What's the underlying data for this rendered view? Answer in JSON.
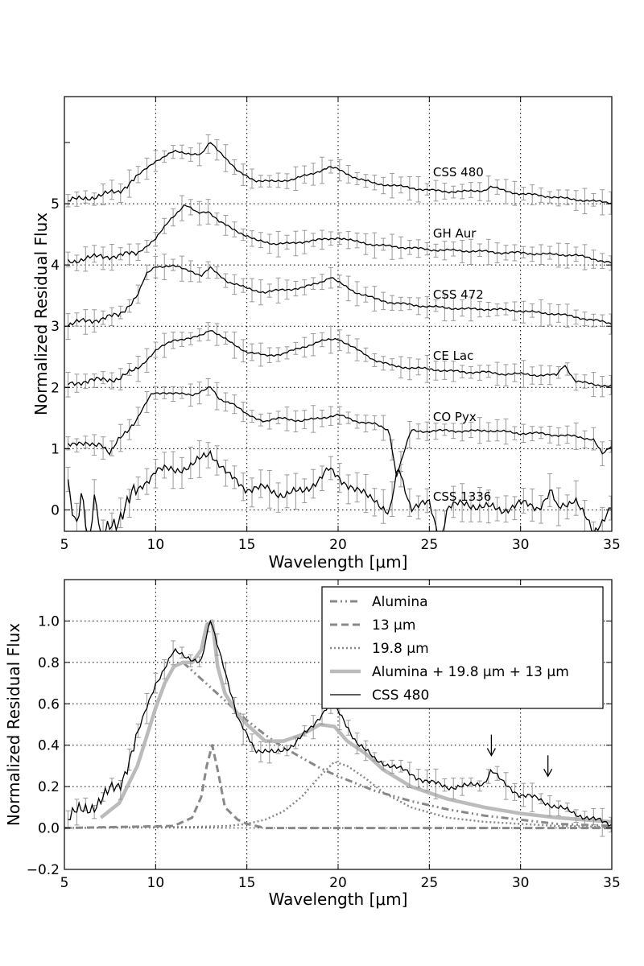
{
  "chart_data": [
    {
      "type": "line",
      "panel": "top",
      "xlabel": "Wavelength [μm]",
      "ylabel": "Normalized Residual Flux",
      "xlim": [
        5,
        35
      ],
      "ylim": [
        -0.35,
        6.75
      ],
      "xticks": [
        "5",
        "10",
        "15",
        "20",
        "25",
        "30",
        "35"
      ],
      "yticks": [
        "0",
        "1",
        "2",
        "3",
        "4",
        "5"
      ],
      "grid": true,
      "series": [
        {
          "name": "CSS 480",
          "label": "CSS 480",
          "offset": 5,
          "label_x": 25.2,
          "label_y": 5.45,
          "x": [
            5.2,
            6,
            7,
            8,
            9,
            10,
            11,
            12,
            12.5,
            13,
            13.7,
            14.5,
            15.5,
            16.5,
            17.5,
            18.5,
            19.5,
            20,
            21,
            22,
            23,
            24,
            25,
            26,
            27,
            28,
            28.4,
            29,
            30,
            31,
            32,
            33,
            34,
            35
          ],
          "y": [
            0.05,
            0.08,
            0.14,
            0.2,
            0.45,
            0.7,
            0.85,
            0.82,
            0.8,
            1.0,
            0.8,
            0.52,
            0.38,
            0.36,
            0.4,
            0.48,
            0.6,
            0.56,
            0.42,
            0.33,
            0.3,
            0.26,
            0.22,
            0.2,
            0.2,
            0.22,
            0.28,
            0.22,
            0.16,
            0.14,
            0.1,
            0.07,
            0.04,
            0.02
          ]
        },
        {
          "name": "GH Aur",
          "label": "GH Aur",
          "offset": 4,
          "label_x": 25.2,
          "label_y": 4.45,
          "x": [
            5.2,
            6,
            7,
            8,
            9,
            10,
            10.8,
            11.6,
            12.3,
            12.9,
            13.5,
            14.5,
            15.5,
            16.5,
            17.5,
            18.5,
            19.5,
            20,
            21,
            22,
            23,
            24,
            25,
            26,
            27,
            28,
            29,
            30,
            31,
            32,
            33,
            34,
            35
          ],
          "y": [
            0.05,
            0.1,
            0.14,
            0.15,
            0.2,
            0.42,
            0.75,
            0.98,
            0.85,
            0.88,
            0.7,
            0.55,
            0.4,
            0.35,
            0.35,
            0.4,
            0.42,
            0.45,
            0.38,
            0.33,
            0.3,
            0.28,
            0.25,
            0.24,
            0.23,
            0.22,
            0.2,
            0.2,
            0.18,
            0.17,
            0.16,
            0.1,
            0.03
          ]
        },
        {
          "name": "CSS 472",
          "label": "CSS 472",
          "offset": 3,
          "label_x": 25.2,
          "label_y": 3.45,
          "x": [
            5.2,
            6,
            7,
            8,
            9,
            9.5,
            10,
            11,
            12,
            12.5,
            13,
            14,
            15,
            16,
            17,
            18,
            19,
            19.6,
            20,
            21,
            22,
            23,
            24,
            25,
            26,
            27,
            28,
            29,
            30,
            31,
            32,
            33,
            34,
            35
          ],
          "y": [
            0.02,
            0.08,
            0.12,
            0.18,
            0.5,
            0.85,
            0.98,
            0.98,
            0.9,
            0.82,
            0.95,
            0.72,
            0.62,
            0.55,
            0.6,
            0.62,
            0.72,
            0.8,
            0.72,
            0.55,
            0.45,
            0.38,
            0.35,
            0.32,
            0.3,
            0.28,
            0.28,
            0.27,
            0.25,
            0.22,
            0.2,
            0.15,
            0.1,
            0.04
          ]
        },
        {
          "name": "CE Lac",
          "label": "CE Lac",
          "offset": 2,
          "label_x": 25.2,
          "label_y": 2.45,
          "x": [
            5.2,
            6,
            7,
            8,
            9,
            10,
            11,
            12,
            12.5,
            13,
            14,
            15,
            16,
            17,
            18,
            19,
            20,
            21,
            22,
            23,
            24,
            25,
            26,
            27,
            28,
            29,
            30,
            31,
            32,
            32.4,
            33,
            34,
            35
          ],
          "y": [
            0.05,
            0.1,
            0.12,
            0.15,
            0.3,
            0.6,
            0.78,
            0.8,
            0.85,
            0.95,
            0.75,
            0.58,
            0.52,
            0.55,
            0.65,
            0.75,
            0.8,
            0.62,
            0.45,
            0.35,
            0.32,
            0.3,
            0.27,
            0.25,
            0.25,
            0.22,
            0.22,
            0.2,
            0.2,
            0.38,
            0.1,
            0.05,
            0.02
          ]
        },
        {
          "name": "CO Pyx",
          "label": "CO Pyx",
          "offset": 1,
          "label_x": 25.2,
          "label_y": 1.45,
          "x": [
            5.2,
            6,
            7,
            7.5,
            8,
            9,
            9.8,
            10.5,
            11,
            12,
            13,
            13.5,
            14.2,
            15,
            16,
            17,
            18,
            19,
            20,
            21,
            22,
            22.8,
            23.2,
            24,
            25,
            26,
            27,
            28,
            29,
            30,
            31,
            32,
            33,
            34,
            34.5,
            35
          ],
          "y": [
            0.1,
            0.05,
            0.1,
            -0.1,
            0.15,
            0.5,
            0.9,
            0.92,
            0.9,
            0.88,
            1.0,
            0.8,
            0.75,
            0.55,
            0.45,
            0.5,
            0.45,
            0.5,
            0.55,
            0.45,
            0.4,
            0.3,
            -0.45,
            0.3,
            0.28,
            0.3,
            0.28,
            0.3,
            0.28,
            0.25,
            0.25,
            0.22,
            0.2,
            0.15,
            -0.1,
            0.05
          ]
        },
        {
          "name": "CSS 1336",
          "label": "CSS 1336",
          "offset": 0,
          "label_x": 25.2,
          "label_y": 0.15,
          "x": [
            5.2,
            5.6,
            6,
            6.3,
            6.7,
            7,
            7.5,
            8,
            9,
            10,
            11,
            12,
            13,
            14,
            15,
            16,
            17,
            18,
            19,
            19.5,
            20,
            21,
            22,
            22.8,
            23.3,
            24,
            25,
            25.6,
            26,
            27,
            28,
            29,
            30,
            31,
            31.7,
            32,
            33,
            34,
            35
          ],
          "y": [
            0.3,
            -0.3,
            0.4,
            -0.5,
            0.2,
            -0.6,
            -0.2,
            -0.1,
            0.3,
            0.65,
            0.65,
            0.72,
            0.95,
            0.55,
            0.35,
            0.35,
            0.25,
            0.3,
            0.5,
            0.65,
            0.55,
            0.3,
            0.2,
            -0.1,
            0.7,
            0.05,
            0.1,
            -0.5,
            0.05,
            0.1,
            0.05,
            0.0,
            0.1,
            0.05,
            0.3,
            0.0,
            0.2,
            -0.4,
            0.1
          ]
        }
      ]
    },
    {
      "type": "line",
      "panel": "bottom",
      "xlabel": "Wavelength [μm]",
      "ylabel": "Normalized Residual Flux",
      "xlim": [
        5,
        35
      ],
      "ylim": [
        -0.2,
        1.2
      ],
      "xticks": [
        "5",
        "10",
        "15",
        "20",
        "25",
        "30",
        "35"
      ],
      "yticks": [
        "−0.2",
        "0.0",
        "0.2",
        "0.4",
        "0.6",
        "0.8",
        "1.0"
      ],
      "grid": true,
      "legend": "top-right",
      "legend_entries": [
        "Alumina",
        "13 μm",
        "19.8 μm",
        "Alumina + 19.8 μm + 13 μm",
        "CSS 480"
      ],
      "series": [
        {
          "name": "Alumina",
          "x": [
            7,
            8,
            9,
            10,
            10.5,
            11,
            11.5,
            12,
            13,
            14,
            15,
            16,
            17,
            18,
            19,
            20,
            22,
            24,
            26,
            28,
            30,
            32,
            35
          ],
          "y": [
            0.05,
            0.12,
            0.3,
            0.58,
            0.7,
            0.78,
            0.8,
            0.76,
            0.68,
            0.6,
            0.52,
            0.45,
            0.39,
            0.34,
            0.29,
            0.25,
            0.18,
            0.13,
            0.09,
            0.06,
            0.04,
            0.02,
            0.01
          ]
        },
        {
          "name": "13 μm",
          "x": [
            5,
            11,
            12,
            12.5,
            12.8,
            13.1,
            13.4,
            13.8,
            14.5,
            15,
            16,
            35
          ],
          "y": [
            0.0,
            0.01,
            0.05,
            0.15,
            0.3,
            0.4,
            0.28,
            0.1,
            0.04,
            0.02,
            0.0,
            0.0
          ]
        },
        {
          "name": "19.8 μm",
          "x": [
            5,
            12,
            14,
            15,
            16,
            17,
            18,
            19,
            19.8,
            20.5,
            21.5,
            22.5,
            24,
            26,
            28,
            30,
            32,
            35
          ],
          "y": [
            0.0,
            0.005,
            0.01,
            0.02,
            0.04,
            0.08,
            0.15,
            0.25,
            0.32,
            0.3,
            0.24,
            0.17,
            0.1,
            0.05,
            0.03,
            0.02,
            0.01,
            0.005
          ]
        },
        {
          "name": "Alumina + 19.8 μm + 13 μm",
          "x": [
            7,
            8,
            9,
            10,
            10.5,
            11,
            11.5,
            12,
            12.5,
            12.8,
            13.1,
            13.4,
            13.8,
            14.5,
            15,
            16,
            17,
            18,
            19,
            19.8,
            20.5,
            21.5,
            22.5,
            24,
            26,
            28,
            30,
            32,
            35
          ],
          "y": [
            0.05,
            0.12,
            0.3,
            0.58,
            0.7,
            0.78,
            0.8,
            0.8,
            0.86,
            0.98,
            1.0,
            0.78,
            0.65,
            0.55,
            0.5,
            0.42,
            0.42,
            0.45,
            0.5,
            0.49,
            0.42,
            0.36,
            0.28,
            0.2,
            0.14,
            0.1,
            0.07,
            0.05,
            0.03
          ]
        },
        {
          "name": "CSS 480",
          "x": [
            5.2,
            6,
            7,
            8,
            9,
            10,
            11,
            12,
            12.5,
            13,
            13.7,
            14.5,
            15.5,
            16.5,
            17.5,
            18.5,
            19.5,
            20,
            21,
            22,
            23,
            24,
            25,
            26,
            27,
            28,
            28.4,
            29,
            30,
            31,
            32,
            33,
            34,
            35
          ],
          "y": [
            0.05,
            0.08,
            0.14,
            0.2,
            0.45,
            0.7,
            0.85,
            0.82,
            0.8,
            1.0,
            0.8,
            0.52,
            0.38,
            0.36,
            0.4,
            0.48,
            0.6,
            0.56,
            0.42,
            0.33,
            0.3,
            0.26,
            0.22,
            0.2,
            0.2,
            0.22,
            0.28,
            0.22,
            0.16,
            0.14,
            0.1,
            0.07,
            0.04,
            0.02
          ]
        }
      ],
      "annotations": [
        {
          "type": "arrow",
          "x": 28.4,
          "y": 0.35,
          "direction": "down"
        },
        {
          "type": "arrow",
          "x": 31.5,
          "y": 0.25,
          "direction": "down"
        }
      ]
    }
  ]
}
